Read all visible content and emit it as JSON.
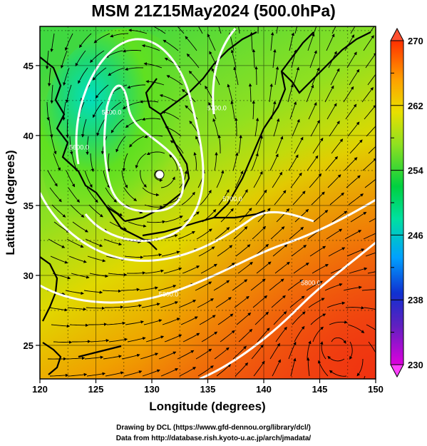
{
  "title": "MSM 21Z15May2024 (500.0hPa)",
  "map": {
    "xlabel": "Longitude (degrees)",
    "ylabel": "Latitude  (degrees)",
    "x_ticks": [
      "120",
      "125",
      "130",
      "135",
      "140",
      "145",
      "150"
    ],
    "y_ticks": [
      "25",
      "30",
      "35",
      "40",
      "45"
    ],
    "lon_range": [
      120,
      150
    ],
    "lat_range": [
      22.6,
      47.8
    ],
    "low_center": {
      "lon": 130.7,
      "lat": 37.2
    },
    "contour_labels": [
      {
        "text": "5500.0",
        "lon": 126.4,
        "lat": 41.5
      },
      {
        "text": "5600.0",
        "lon": 123.5,
        "lat": 39.0
      },
      {
        "text": "5700.0",
        "lon": 137.2,
        "lat": 35.3
      },
      {
        "text": "5800.0",
        "lon": 131.5,
        "lat": 28.5
      },
      {
        "text": "5800.0",
        "lon": 144.2,
        "lat": 29.3
      },
      {
        "text": "5700.0",
        "lon": 135.8,
        "lat": 41.8
      }
    ]
  },
  "colorbar": {
    "labels": [
      "270",
      "262",
      "254",
      "246",
      "238",
      "230"
    ],
    "range": [
      230,
      270
    ],
    "colors": [
      "#cc00cc",
      "#2020d0",
      "#00b0ff",
      "#00e0b0",
      "#00d040",
      "#80e020",
      "#e0e000",
      "#ffa000",
      "#ff4000"
    ]
  },
  "credits": {
    "line1": "Drawing by DCL (https://www.gfd-dennou.org/library/dcl/)",
    "line2": "Data from http://database.rish.kyoto-u.ac.jp/arch/jmadata/"
  }
}
